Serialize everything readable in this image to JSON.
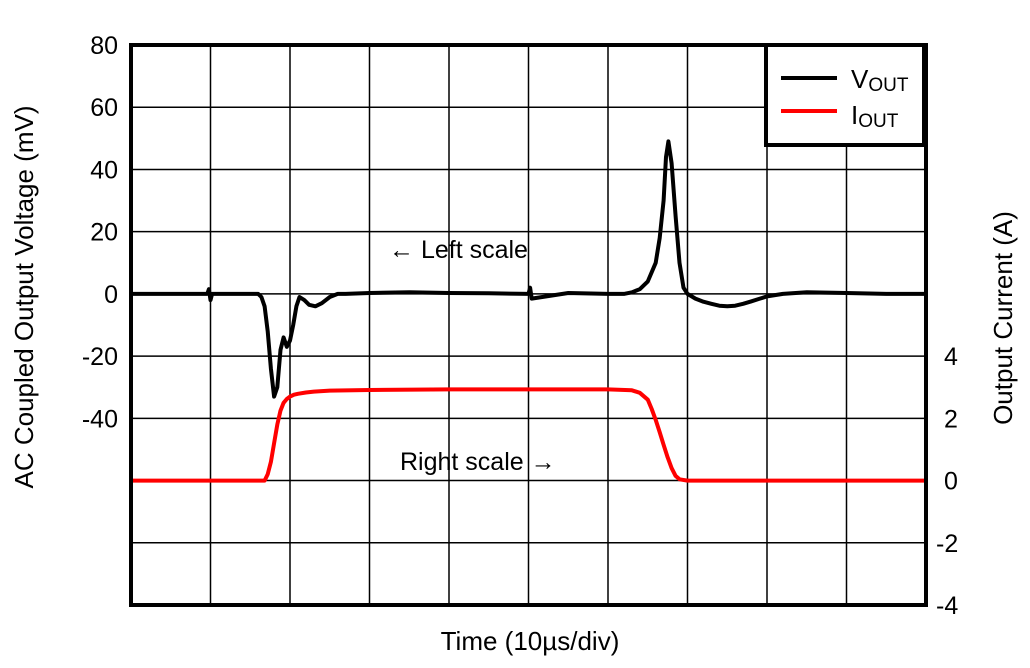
{
  "chart_data": {
    "type": "line",
    "title": "",
    "xlabel": "Time (10µs/div)",
    "ylabel": "AC Coupled Output Voltage (mV)",
    "ylabel_right": "Output Current (A)",
    "x_divisions": 10,
    "x_unit_per_div_us": 10,
    "xlim_us": [
      0,
      100
    ],
    "ylim_left": [
      -100,
      80
    ],
    "ylim_right": [
      -4,
      14
    ],
    "left_ticks": [
      "80",
      "60",
      "40",
      "20",
      "0",
      "-20",
      "-40"
    ],
    "left_tick_values": [
      80,
      60,
      40,
      20,
      0,
      -20,
      -40
    ],
    "right_ticks": [
      "4",
      "2",
      "0",
      "-2",
      "-4"
    ],
    "right_tick_values": [
      4,
      2,
      0,
      -2,
      -4
    ],
    "grid": true,
    "legend_position": "upper right",
    "legend": [
      {
        "label_main": "V",
        "label_sub": "OUT",
        "color": "#000000"
      },
      {
        "label_main": "I",
        "label_sub": "OUT",
        "color": "#ff0000"
      }
    ],
    "annotations": [
      {
        "text": "← Left scale",
        "x_us": 32.5,
        "y_mV": 14.5
      },
      {
        "text": "Right scale →",
        "x_us": 34,
        "y_mV": -53
      }
    ],
    "series": [
      {
        "name": "VOUT",
        "axis": "left",
        "unit": "mV",
        "color": "#000000",
        "x_us": [
          0,
          9.6,
          9.8,
          10.0,
          10.2,
          16.0,
          16.4,
          16.8,
          17.2,
          17.6,
          18.0,
          18.4,
          18.8,
          19.2,
          19.6,
          20.0,
          20.4,
          20.8,
          21.2,
          21.8,
          22.4,
          23.2,
          24.0,
          25.0,
          26.0,
          27.0,
          30,
          35,
          40,
          45,
          50.0,
          50.2,
          50.4,
          55,
          60,
          62,
          63,
          64,
          65,
          66,
          66.5,
          67,
          67.3,
          67.6,
          68,
          68.5,
          69,
          69.5,
          70,
          71,
          72,
          73,
          74,
          75,
          76,
          77,
          78,
          79,
          80,
          82,
          85,
          90,
          95,
          100
        ],
        "values": [
          0,
          0,
          1.5,
          -2,
          0,
          0,
          -1,
          -4,
          -12,
          -24,
          -33,
          -30,
          -18,
          -14,
          -17,
          -15,
          -10,
          -4,
          -1,
          -2,
          -3.5,
          -4,
          -3,
          -1,
          0,
          0,
          0.3,
          0.5,
          0.3,
          0.2,
          0,
          2,
          -1.5,
          0.3,
          0,
          0,
          0.5,
          1.5,
          4,
          10,
          18,
          30,
          44,
          49,
          42,
          25,
          10,
          2,
          0,
          -1.5,
          -2.5,
          -3.2,
          -3.8,
          -4,
          -3.8,
          -3.2,
          -2.4,
          -1.6,
          -0.8,
          0,
          0.5,
          0.3,
          0,
          0
        ]
      },
      {
        "name": "IOUT",
        "axis": "right",
        "unit": "A",
        "color": "#ff0000",
        "x_us": [
          0,
          16.8,
          17.2,
          17.6,
          18.0,
          18.4,
          18.8,
          19.2,
          19.6,
          20.0,
          20.5,
          21.0,
          22.0,
          23.0,
          25.0,
          30,
          40,
          50,
          60,
          63,
          64,
          65,
          65.5,
          66,
          66.5,
          67,
          67.5,
          68,
          68.5,
          69,
          70,
          80,
          90,
          100
        ],
        "values": [
          0,
          0,
          0.2,
          0.6,
          1.2,
          1.8,
          2.25,
          2.5,
          2.62,
          2.7,
          2.76,
          2.79,
          2.83,
          2.86,
          2.89,
          2.91,
          2.93,
          2.93,
          2.93,
          2.9,
          2.82,
          2.6,
          2.3,
          1.95,
          1.55,
          1.15,
          0.75,
          0.4,
          0.15,
          0.04,
          0,
          0,
          0,
          0
        ]
      }
    ]
  }
}
